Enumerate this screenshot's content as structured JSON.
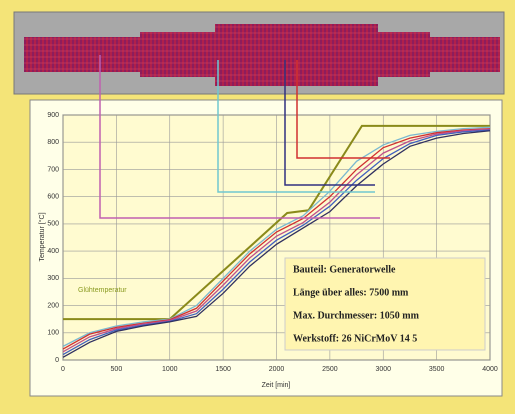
{
  "chart_data": {
    "type": "line",
    "xlabel": "Zeit [min]",
    "ylabel": "Temperatur [°C]",
    "annotation": "Glühtemperatur",
    "info_box": [
      "Bauteil: Generatorwelle",
      "Länge über alles: 7500 mm",
      "Max. Durchmesser: 1050 mm",
      "Werkstoff: 26 NiCrMoV 14 5"
    ],
    "x": [
      0,
      250,
      500,
      750,
      1000,
      1250,
      1500,
      1750,
      2000,
      2250,
      2500,
      2750,
      3000,
      3250,
      3500,
      3750,
      4000
    ],
    "series": [
      {
        "color": "#8a8a1a",
        "x": [
          0,
          1000,
          2100,
          2300,
          2800,
          4000
        ],
        "values": [
          150,
          150,
          540,
          550,
          860,
          860
        ]
      },
      {
        "color": "#7ab8d0",
        "values": [
          50,
          100,
          125,
          140,
          150,
          200,
          300,
          400,
          480,
          530,
          620,
          730,
          790,
          825,
          840,
          850,
          855
        ]
      },
      {
        "color": "#d03030",
        "values": [
          40,
          95,
          120,
          135,
          148,
          190,
          290,
          390,
          470,
          520,
          600,
          700,
          780,
          815,
          835,
          845,
          850
        ]
      },
      {
        "color": "#c0508a",
        "values": [
          30,
          85,
          115,
          132,
          145,
          180,
          275,
          375,
          455,
          505,
          580,
          680,
          760,
          805,
          830,
          842,
          848
        ]
      },
      {
        "color": "#4060c0",
        "values": [
          20,
          75,
          110,
          128,
          142,
          170,
          260,
          360,
          440,
          495,
          565,
          660,
          740,
          795,
          825,
          838,
          845
        ]
      },
      {
        "color": "#303060",
        "values": [
          10,
          65,
          105,
          125,
          140,
          160,
          245,
          345,
          425,
          485,
          545,
          640,
          720,
          785,
          815,
          832,
          842
        ]
      }
    ],
    "xlim": [
      0,
      4000
    ],
    "xticks": [
      0,
      500,
      1000,
      1500,
      2000,
      2500,
      3000,
      3500,
      4000
    ],
    "ylim": [
      0,
      900
    ],
    "yticks": [
      0,
      100,
      200,
      300,
      400,
      500,
      600,
      700,
      800,
      900
    ],
    "grid": true
  }
}
